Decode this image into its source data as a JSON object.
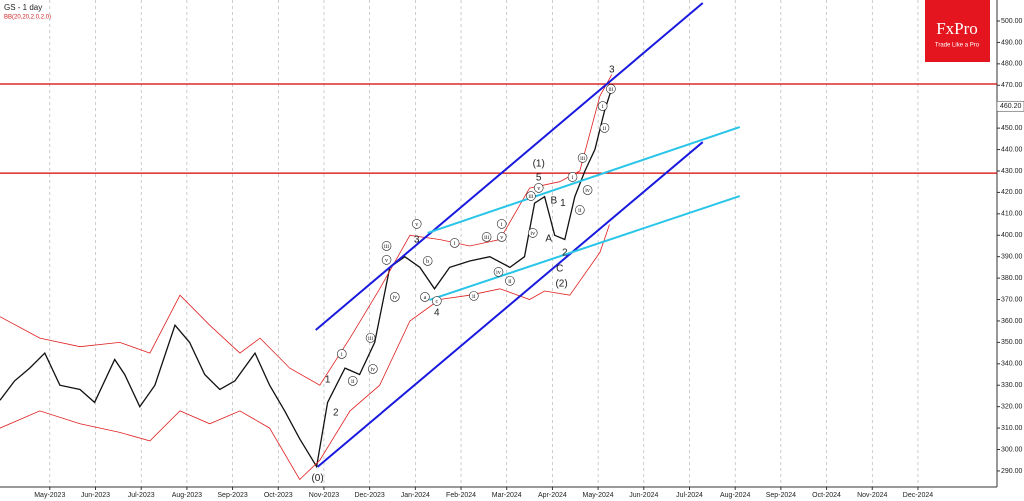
{
  "chart_data": {
    "type": "line",
    "title": "GS - 1 day",
    "subtitle": "BB(20,20,2.0,2.0)",
    "logo": {
      "name": "FxPro",
      "tagline": "Trade Like a Pro"
    },
    "xlim": [
      -1.09,
      20.73
    ],
    "ylim": [
      282.5,
      509.8
    ],
    "grid": true,
    "xticks": [
      {
        "value": 0,
        "label": "May-2023"
      },
      {
        "value": 1,
        "label": "Jun-2023"
      },
      {
        "value": 2,
        "label": "Jul-2023"
      },
      {
        "value": 3,
        "label": "Aug-2023"
      },
      {
        "value": 4,
        "label": "Sep-2023"
      },
      {
        "value": 5,
        "label": "Oct-2023"
      },
      {
        "value": 6,
        "label": "Nov-2023"
      },
      {
        "value": 7,
        "label": "Dec-2023"
      },
      {
        "value": 8,
        "label": "Jan-2024"
      },
      {
        "value": 9,
        "label": "Feb-2024"
      },
      {
        "value": 10,
        "label": "Mar-2024"
      },
      {
        "value": 11,
        "label": "Apr-2024"
      },
      {
        "value": 12,
        "label": "May-2024"
      },
      {
        "value": 13,
        "label": "Jun-2024"
      },
      {
        "value": 14,
        "label": "Jul-2024"
      },
      {
        "value": 15,
        "label": "Aug-2024"
      },
      {
        "value": 16,
        "label": "Sep-2024"
      },
      {
        "value": 17,
        "label": "Oct-2024"
      },
      {
        "value": 18,
        "label": "Nov-2024"
      },
      {
        "value": 19,
        "label": "Dec-2024"
      }
    ],
    "yticks": [
      {
        "value": 290,
        "label": "290.00"
      },
      {
        "value": 300,
        "label": "300.00"
      },
      {
        "value": 310,
        "label": "310.00"
      },
      {
        "value": 320,
        "label": "320.00"
      },
      {
        "value": 330,
        "label": "330.00"
      },
      {
        "value": 340,
        "label": "340.00"
      },
      {
        "value": 350,
        "label": "350.00"
      },
      {
        "value": 360,
        "label": "360.00"
      },
      {
        "value": 370,
        "label": "370.00"
      },
      {
        "value": 380,
        "label": "380.00"
      },
      {
        "value": 390,
        "label": "390.00"
      },
      {
        "value": 400,
        "label": "400.00"
      },
      {
        "value": 410,
        "label": "410.00"
      },
      {
        "value": 420,
        "label": "420.00"
      },
      {
        "value": 430,
        "label": "430.00"
      },
      {
        "value": 440,
        "label": "440.00"
      },
      {
        "value": 450,
        "label": "450.00"
      },
      {
        "value": 460,
        "label": "460.00"
      },
      {
        "value": 470,
        "label": "470.00"
      },
      {
        "value": 480,
        "label": "480.00"
      },
      {
        "value": 490,
        "label": "490.00"
      },
      {
        "value": 500,
        "label": "500.00"
      }
    ],
    "series": [
      {
        "color": "#111111",
        "width": 1.3,
        "x": [
          -1.09,
          -0.77,
          -0.44,
          -0.11,
          0.22,
          0.66,
          0.98,
          1.42,
          1.64,
          1.97,
          2.3,
          2.74,
          3.06,
          3.39,
          3.72,
          4.05,
          4.49,
          4.81,
          5.14,
          5.47,
          5.84,
          6.08,
          6.46,
          6.78,
          7.11,
          7.44,
          7.77,
          8.1,
          8.42,
          8.75,
          9.19,
          9.63,
          10.07,
          10.39,
          10.61,
          10.83,
          11.05,
          11.27,
          11.49,
          11.71,
          11.93,
          12.14,
          12.32
        ],
        "values": [
          323,
          332,
          338,
          345,
          330,
          328,
          322,
          342,
          335,
          320,
          330,
          358,
          350,
          335,
          328,
          332,
          345,
          330,
          318,
          305,
          292,
          322,
          338,
          335,
          350,
          385,
          390,
          385,
          375,
          385,
          388,
          390,
          385,
          390,
          415,
          418,
          400,
          398,
          418,
          430,
          440,
          458,
          470
        ]
      },
      {
        "color": "#e02020",
        "width": 0.8,
        "x": [
          -1.09,
          -0.22,
          0.66,
          1.53,
          2.19,
          2.85,
          3.5,
          4.16,
          4.6,
          5.25,
          5.91,
          6.57,
          7.22,
          7.88,
          8.53,
          9.19,
          9.85,
          10.5,
          11.16,
          11.6,
          12.04,
          12.3
        ],
        "values": [
          362,
          352,
          348,
          350,
          345,
          372,
          358,
          345,
          352,
          338,
          330,
          352,
          375,
          400,
          398,
          395,
          398,
          422,
          425,
          430,
          465,
          475
        ]
      },
      {
        "color": "#e02020",
        "width": 0.8,
        "x": [
          -1.09,
          -0.22,
          0.66,
          1.53,
          2.19,
          2.85,
          3.5,
          4.16,
          4.81,
          5.47,
          5.91,
          6.57,
          7.22,
          7.88,
          8.53,
          9.19,
          9.85,
          10.5,
          10.83,
          11.38,
          12.04,
          12.25
        ],
        "values": [
          310,
          318,
          312,
          308,
          304,
          318,
          312,
          318,
          310,
          286,
          295,
          318,
          330,
          360,
          370,
          372,
          375,
          370,
          374,
          372,
          392,
          405
        ]
      }
    ],
    "levels": [
      {
        "value": 470.6,
        "color": "#d40000"
      },
      {
        "value": 429,
        "color": "#d40000"
      }
    ],
    "last_price": {
      "value": 460.2,
      "label": "460.20"
    },
    "trendlines": [
      {
        "color": "#1a1adf",
        "x": [
          5.82,
          14.29
        ],
        "values": [
          355.8,
          508.4
        ]
      },
      {
        "color": "#1a1adf",
        "x": [
          5.86,
          14.29
        ],
        "values": [
          291.9,
          443.5
        ]
      },
      {
        "color": "#29c5e8",
        "x": [
          8.27,
          15.1
        ],
        "values": [
          401.1,
          450.5
        ]
      },
      {
        "color": "#29c5e8",
        "x": [
          8.31,
          15.1
        ],
        "values": [
          369.8,
          418.3
        ]
      }
    ],
    "annotations": [
      {
        "text": "(0)",
        "x": 5.86,
        "y": 286.6
      },
      {
        "text": "1",
        "x": 6.08,
        "y": 332.5
      },
      {
        "text": "2",
        "x": 6.26,
        "y": 317
      },
      {
        "text": "3",
        "x": 8.03,
        "y": 397.8
      },
      {
        "text": "4",
        "x": 8.47,
        "y": 363.7
      },
      {
        "text": "(1)",
        "x": 10.7,
        "y": 433.3
      },
      {
        "text": "5",
        "x": 10.7,
        "y": 426.7
      },
      {
        "text": "B",
        "x": 11.03,
        "y": 416
      },
      {
        "text": "1",
        "x": 11.23,
        "y": 415
      },
      {
        "text": "A",
        "x": 10.92,
        "y": 398.3
      },
      {
        "text": "2",
        "x": 11.27,
        "y": 391.7
      },
      {
        "text": "C",
        "x": 11.16,
        "y": 384.3
      },
      {
        "text": "(2)",
        "x": 11.2,
        "y": 377.3
      },
      {
        "text": "3",
        "x": 12.3,
        "y": 477.1
      },
      {
        "text": "i",
        "x": 6.39,
        "y": 344.6,
        "circled": true
      },
      {
        "text": "ii",
        "x": 6.63,
        "y": 332,
        "circled": true
      },
      {
        "text": "iii",
        "x": 7.02,
        "y": 352.1,
        "circled": true
      },
      {
        "text": "iv",
        "x": 7.07,
        "y": 337.6,
        "circled": true
      },
      {
        "text": "iii",
        "x": 7.37,
        "y": 395,
        "circled": true
      },
      {
        "text": "v",
        "x": 7.37,
        "y": 388.5,
        "circled": true
      },
      {
        "text": "iv",
        "x": 7.55,
        "y": 371.2,
        "circled": true
      },
      {
        "text": "v",
        "x": 8.03,
        "y": 405.3,
        "circled": true
      },
      {
        "text": "b",
        "x": 8.27,
        "y": 388,
        "circled": true
      },
      {
        "text": "a",
        "x": 8.21,
        "y": 371.2,
        "circled": true
      },
      {
        "text": "c",
        "x": 8.47,
        "y": 369.3,
        "circled": true
      },
      {
        "text": "i",
        "x": 8.86,
        "y": 396.4,
        "circled": true
      },
      {
        "text": "ii",
        "x": 9.28,
        "y": 371.7,
        "circled": true
      },
      {
        "text": "iii",
        "x": 9.56,
        "y": 399.2,
        "circled": true
      },
      {
        "text": "iv",
        "x": 9.82,
        "y": 382.9,
        "circled": true
      },
      {
        "text": "i",
        "x": 9.89,
        "y": 405.3,
        "circled": true
      },
      {
        "text": "v",
        "x": 9.89,
        "y": 399.2,
        "circled": true
      },
      {
        "text": "ii",
        "x": 10.07,
        "y": 378.7,
        "circled": true
      },
      {
        "text": "iii",
        "x": 10.53,
        "y": 418.3,
        "circled": true
      },
      {
        "text": "v",
        "x": 10.7,
        "y": 422.1,
        "circled": true
      },
      {
        "text": "iv",
        "x": 10.57,
        "y": 401.1,
        "circled": true
      },
      {
        "text": "i",
        "x": 11.44,
        "y": 427.2,
        "circled": true
      },
      {
        "text": "ii",
        "x": 11.6,
        "y": 411.8,
        "circled": true
      },
      {
        "text": "iii",
        "x": 11.66,
        "y": 436.1,
        "circled": true
      },
      {
        "text": "iv",
        "x": 11.77,
        "y": 421.1,
        "circled": true
      },
      {
        "text": "i",
        "x": 12.1,
        "y": 460.3,
        "circled": true
      },
      {
        "text": "ii",
        "x": 12.14,
        "y": 450.1,
        "circled": true
      },
      {
        "text": "iii",
        "x": 12.28,
        "y": 468.3,
        "circled": true
      }
    ]
  }
}
